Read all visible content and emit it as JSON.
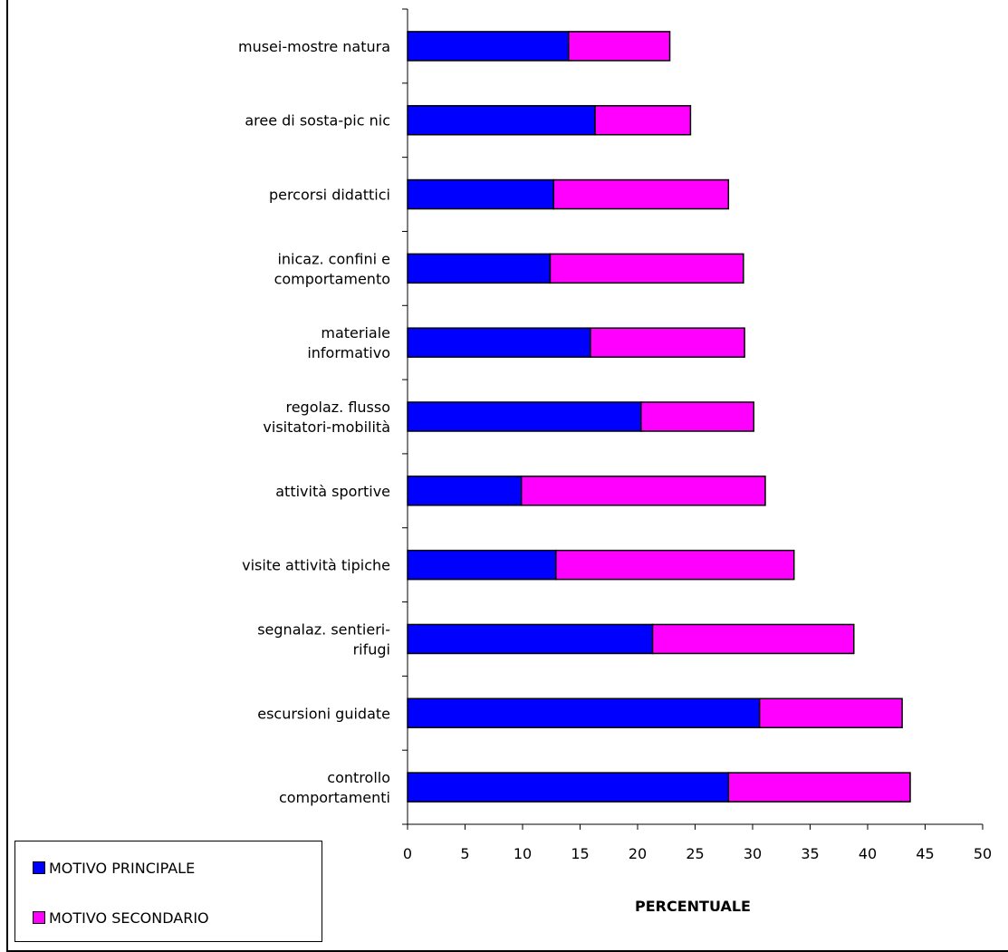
{
  "chart_data": {
    "type": "bar",
    "orientation": "horizontal",
    "stacked": true,
    "categories": [
      "musei-mostre natura",
      "aree di sosta-pic nic",
      "percorsi didattici",
      "inicaz. confini e comportamento",
      "materiale informativo",
      "regolaz. flusso visitatori-mobilità",
      "attività sportive",
      "visite attività tipiche",
      "segnalaz. sentieri-rifugi",
      "escursioni guidate",
      "controllo comportamenti"
    ],
    "category_lines": [
      [
        "musei-mostre natura"
      ],
      [
        "aree di sosta-pic nic"
      ],
      [
        "percorsi didattici"
      ],
      [
        "inicaz. confini e",
        "comportamento"
      ],
      [
        "materiale",
        "informativo"
      ],
      [
        "regolaz. flusso",
        "visitatori-mobilità"
      ],
      [
        "attività sportive"
      ],
      [
        "visite attività tipiche"
      ],
      [
        "segnalaz. sentieri-",
        "rifugi"
      ],
      [
        "escursioni guidate"
      ],
      [
        "controllo",
        "comportamenti"
      ]
    ],
    "series": [
      {
        "name": "MOTIVO PRINCIPALE",
        "color": "#0000ff",
        "values": [
          14.0,
          16.3,
          12.7,
          12.4,
          15.9,
          20.3,
          9.9,
          12.9,
          21.3,
          30.6,
          27.9
        ]
      },
      {
        "name": "MOTIVO SECONDARIO",
        "color": "#ff00ff",
        "values": [
          8.8,
          8.3,
          15.2,
          16.8,
          13.4,
          9.8,
          21.2,
          20.7,
          17.5,
          12.4,
          15.8
        ]
      }
    ],
    "xticks": [
      "0",
      "5",
      "10",
      "15",
      "20",
      "25",
      "30",
      "35",
      "40",
      "45",
      "50"
    ],
    "xlim": [
      0,
      50
    ],
    "xlabel": "PERCENTUALE",
    "ylabel": "",
    "title": "",
    "grid": false,
    "legend_position": "bottom-left"
  }
}
